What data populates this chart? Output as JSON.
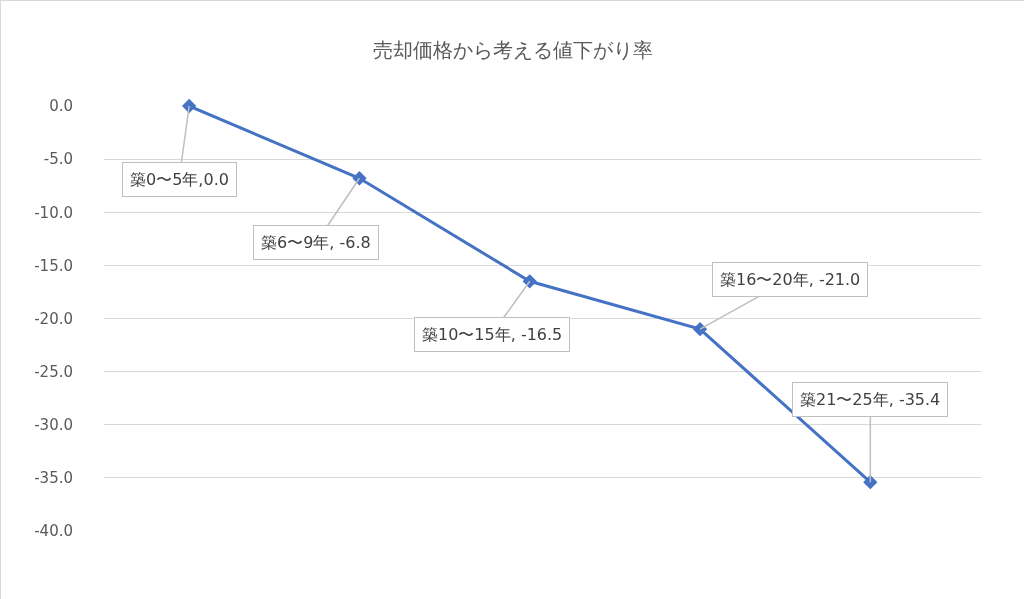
{
  "chart_data": {
    "type": "line",
    "title": "売却価格から考える値下がり率",
    "categories": [
      null,
      null,
      null,
      null,
      null
    ],
    "series": [
      {
        "color": "#4472c4",
        "values": [
          0.0,
          -6.8,
          -16.5,
          -21.0,
          -35.4
        ]
      }
    ],
    "annotations": [
      "築0〜5年,0.0",
      "築6〜9年, -6.8",
      "築10〜15年, -16.5",
      "築16〜20年, -21.0",
      "築21〜25年, -35.4"
    ],
    "ylim": [
      -40,
      0
    ],
    "yticks": [
      {
        "value": 0,
        "label": "0.0"
      },
      {
        "value": -5,
        "label": "-5.0"
      },
      {
        "value": -10,
        "label": "-10.0"
      },
      {
        "value": -15,
        "label": "-15.0"
      },
      {
        "value": -20,
        "label": "-20.0"
      },
      {
        "value": -25,
        "label": "-25.0"
      },
      {
        "value": -30,
        "label": "-30.0"
      },
      {
        "value": -35,
        "label": "-35.0"
      },
      {
        "value": -40,
        "label": "-40.0"
      }
    ],
    "grid": "y",
    "tick_labels": "y",
    "marker": "diamond",
    "line_style": "solid"
  }
}
